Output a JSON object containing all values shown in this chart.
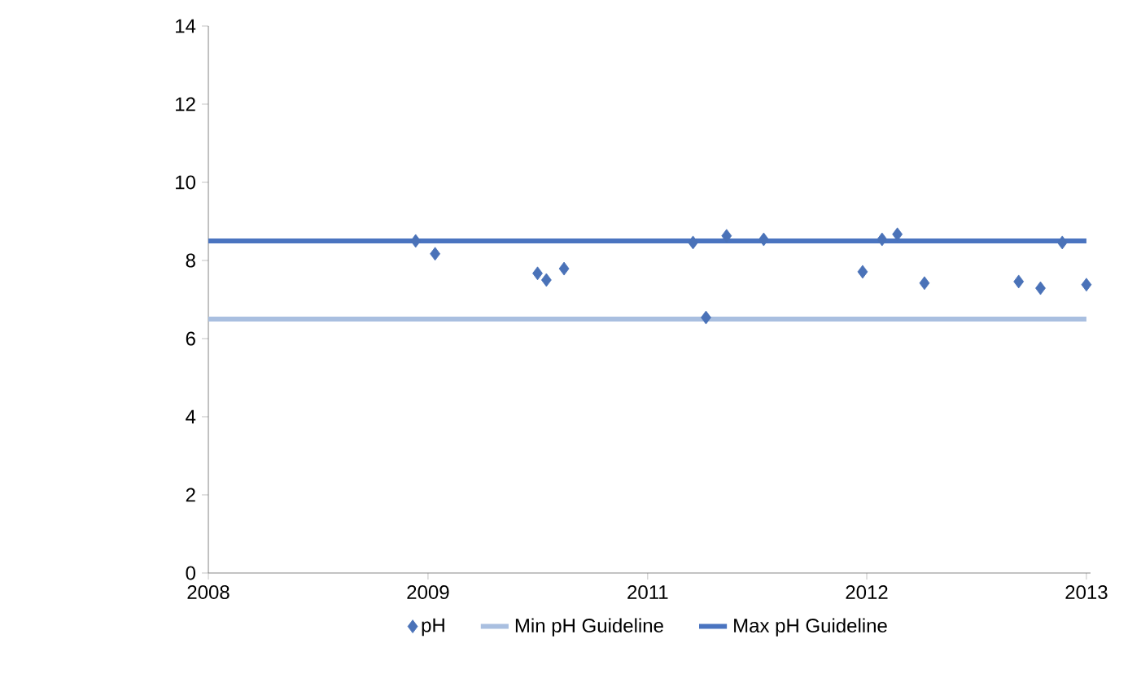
{
  "chart_data": {
    "type": "scatter",
    "xlim": [
      "2008-12-16",
      "2013-01-22"
    ],
    "ylim": [
      0,
      14
    ],
    "xticks": [
      {
        "value": "2008-12-16",
        "label": "2008"
      },
      {
        "value": "2009-12-24",
        "label": "2009"
      },
      {
        "value": "2011-01-01",
        "label": "2011"
      },
      {
        "value": "2012-01-08",
        "label": "2012"
      },
      {
        "value": "2013-01-15",
        "label": "2013"
      }
    ],
    "yticks": [
      0,
      2,
      4,
      6,
      8,
      10,
      12,
      14
    ],
    "grid": false,
    "legend": "bottom",
    "series": [
      {
        "name": "pH",
        "marker": "diamond",
        "color": "#4a72b8",
        "x": [
          "2009-12-03",
          "2010-01-05",
          "2010-06-28",
          "2010-07-13",
          "2010-08-12",
          "2011-03-19",
          "2011-04-10",
          "2011-05-15",
          "2011-07-17",
          "2012-01-01",
          "2012-02-03",
          "2012-02-29",
          "2012-04-15",
          "2012-09-22",
          "2012-10-29",
          "2012-12-05",
          "2013-01-15"
        ],
        "values": [
          8.5,
          8.17,
          7.67,
          7.5,
          7.79,
          8.46,
          6.54,
          8.63,
          8.54,
          7.71,
          8.54,
          8.67,
          7.42,
          7.46,
          7.29,
          8.46,
          7.38
        ]
      },
      {
        "name": "Min pH Guideline",
        "type": "line",
        "marker": "none",
        "color": "#a9bfe0",
        "x": [
          "2008-12-16",
          "2013-01-15"
        ],
        "values": [
          6.5,
          6.5
        ]
      },
      {
        "name": "Max pH Guideline",
        "type": "line",
        "marker": "none",
        "color": "#4a74c0",
        "x": [
          "2008-12-16",
          "2013-01-15"
        ],
        "values": [
          8.5,
          8.5
        ]
      }
    ]
  }
}
